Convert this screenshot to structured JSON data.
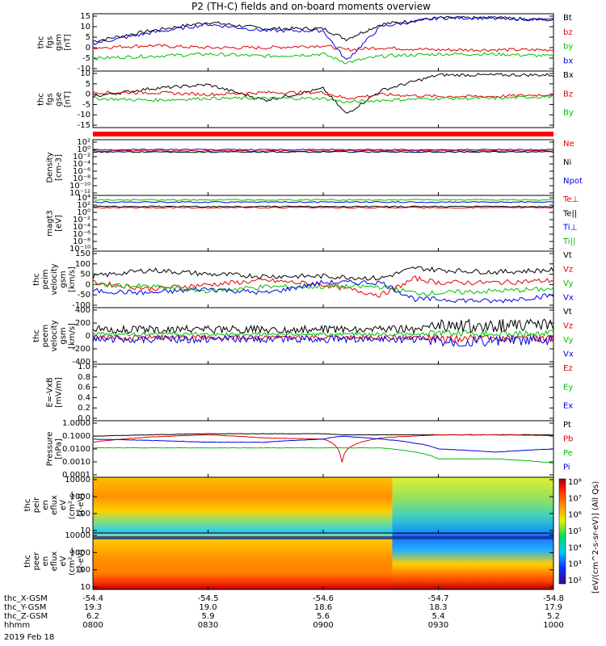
{
  "title": "P2 (TH-C) fields and on-board moments overview",
  "colors": {
    "black": "#000000",
    "red": "#e00000",
    "green": "#00c000",
    "blue": "#0000e0"
  },
  "panels": [
    {
      "id": "p1",
      "ylabel": [
        "thc",
        "fgs",
        "gsm",
        "[nT]"
      ],
      "yticks": [
        "15",
        "10",
        "5",
        "0",
        "-5",
        "-10"
      ],
      "legend": [
        [
          "Bt",
          "black"
        ],
        [
          "bz",
          "red"
        ],
        [
          "by",
          "green"
        ],
        [
          "bx",
          "blue"
        ]
      ]
    },
    {
      "id": "p2",
      "ylabel": [
        "thc",
        "fgs",
        "gse",
        "[nT]"
      ],
      "yticks": [
        "10",
        "5",
        "0",
        "-5",
        "-10",
        "-15"
      ],
      "legend": [
        [
          "Bx",
          "black"
        ],
        [
          "Bz",
          "red"
        ],
        [
          "By",
          "green"
        ]
      ]
    },
    {
      "id": "p3",
      "ylabel": [
        "Density",
        "[cm-3]"
      ],
      "yticks": [
        "10²",
        "10⁰",
        "10⁻²",
        "10⁻⁴",
        "10⁻⁶",
        "10⁻⁸",
        "10⁻¹⁰",
        "10⁻¹²"
      ],
      "legend": [
        [
          "Ne",
          "red"
        ],
        [
          "Ni",
          "black"
        ],
        [
          "Npot",
          "blue"
        ]
      ]
    },
    {
      "id": "p4",
      "ylabel": [
        "magt3",
        "[eV]"
      ],
      "yticks": [
        "10⁴",
        "10²",
        "10⁰",
        "10⁻²",
        "10⁻⁴",
        "10⁻⁶",
        "10⁻⁸",
        "10⁻¹⁰"
      ],
      "legend": [
        [
          "Te⊥",
          "red"
        ],
        [
          "Te||",
          "black"
        ],
        [
          "Ti⊥",
          "blue"
        ],
        [
          "Ti||",
          "green"
        ]
      ]
    },
    {
      "id": "p5",
      "ylabel": [
        "thc",
        "peim",
        "velocity",
        "gsm",
        "[km/s]"
      ],
      "yticks": [
        "150",
        "100",
        "50",
        "0",
        "-50",
        "-100"
      ],
      "legend": [
        [
          "Vt",
          "black"
        ],
        [
          "Vz",
          "red"
        ],
        [
          "Vy",
          "green"
        ],
        [
          "Vx",
          "blue"
        ]
      ]
    },
    {
      "id": "p6",
      "ylabel": [
        "thc",
        "peem",
        "velocity",
        "gsm",
        "[km/s]"
      ],
      "yticks": [
        "400",
        "200",
        "0",
        "-200",
        "-400"
      ],
      "legend": [
        [
          "Vt",
          "black"
        ],
        [
          "Vz",
          "red"
        ],
        [
          "Vy",
          "green"
        ],
        [
          "Vx",
          "blue"
        ]
      ]
    },
    {
      "id": "p7",
      "ylabel": [
        "E=-VxB",
        "[mV/m]"
      ],
      "yticks": [
        "1.0",
        "0.8",
        "0.6",
        "0.4",
        "0.2",
        "0.0"
      ],
      "legend": [
        [
          "Ez",
          "red"
        ],
        [
          "Ey",
          "green"
        ],
        [
          "Ex",
          "blue"
        ]
      ]
    },
    {
      "id": "p8",
      "ylabel": [
        "Pressure",
        "[nPa]"
      ],
      "yticks": [
        "1.0000",
        "0.1000",
        "0.0100",
        "0.0010",
        "0.0001"
      ],
      "legend": [
        [
          "Pt",
          "black"
        ],
        [
          "Pb",
          "red"
        ],
        [
          "Pe",
          "green"
        ],
        [
          "Pi",
          "blue"
        ]
      ]
    },
    {
      "id": "p9",
      "ylabel": [
        "thc",
        "peir",
        "en",
        "eflux",
        "eV",
        "(cm²-s-",
        "sr-eV)"
      ],
      "yticks": [
        "10000",
        "1000",
        "100",
        "10"
      ],
      "legend": []
    },
    {
      "id": "p10",
      "ylabel": [
        "thc",
        "peer",
        "en",
        "eflux",
        "eV",
        "(cm²-s-",
        "sr-eV)"
      ],
      "yticks": [
        "10000",
        "1000",
        "100",
        "10"
      ],
      "legend": []
    }
  ],
  "colorbar": {
    "label": "[eV/(cm^2-s-sr-eV)] (All Qs)",
    "ticks": [
      "10⁸",
      "10⁷",
      "10⁶",
      "10⁵",
      "10⁴",
      "10³",
      "10²"
    ]
  },
  "xaxis": {
    "rows": [
      {
        "label": "thc_X-GSM",
        "values": [
          "-54.4",
          "-54.5",
          "-54.6",
          "-54.7",
          "-54.8"
        ]
      },
      {
        "label": "thc_Y-GSM",
        "values": [
          "19.3",
          "19.0",
          "18.6",
          "18.3",
          "17.9"
        ]
      },
      {
        "label": "thc_Z-GSM",
        "values": [
          "6.2",
          "5.9",
          "5.6",
          "5.4",
          "5.2"
        ]
      },
      {
        "label": "hhmm",
        "values": [
          "0800",
          "0830",
          "0900",
          "0930",
          "1000"
        ]
      }
    ],
    "date": "2019 Feb 18"
  },
  "chart_data": [
    {
      "type": "line",
      "panel": "thc fgs gsm [nT]",
      "x_hours": [
        8.0,
        8.25,
        8.5,
        8.75,
        9.0,
        9.1,
        9.25,
        9.5,
        9.75,
        10.0
      ],
      "ylim": [
        -10,
        17
      ],
      "series": [
        {
          "name": "Bt",
          "values": [
            4,
            9,
            13,
            10,
            10,
            5,
            12,
            15,
            15,
            14
          ]
        },
        {
          "name": "bz",
          "values": [
            1,
            2,
            1,
            1,
            2,
            0,
            1,
            0,
            0,
            0
          ]
        },
        {
          "name": "by",
          "values": [
            -4,
            -3,
            -2,
            -3,
            -2,
            -6,
            -3,
            -2,
            -2,
            -3
          ]
        },
        {
          "name": "bx",
          "values": [
            3,
            8,
            12,
            9,
            9,
            -5,
            11,
            15,
            15,
            14
          ]
        }
      ]
    },
    {
      "type": "line",
      "panel": "thc fgs gse [nT]",
      "x_hours": [
        8.0,
        8.25,
        8.5,
        8.75,
        9.0,
        9.1,
        9.25,
        9.5,
        9.75,
        10.0
      ],
      "ylim": [
        -17,
        12
      ],
      "series": [
        {
          "name": "Bx",
          "values": [
            -1,
            3,
            5,
            -3,
            3,
            -10,
            2,
            10,
            10,
            10
          ]
        },
        {
          "name": "Bz",
          "values": [
            1,
            1,
            0,
            1,
            1,
            -2,
            0,
            -1,
            -1,
            0
          ]
        },
        {
          "name": "By",
          "values": [
            -2,
            -3,
            -2,
            -2,
            -2,
            -4,
            -3,
            -2,
            -2,
            -1
          ]
        }
      ]
    },
    {
      "type": "line",
      "panel": "thc peim velocity gsm [km/s]",
      "x_hours": [
        8.0,
        8.25,
        8.5,
        8.75,
        9.0,
        9.25,
        9.4,
        9.5,
        9.75,
        10.0
      ],
      "ylim": [
        -110,
        160
      ],
      "series": [
        {
          "name": "Vt",
          "values": [
            40,
            70,
            50,
            40,
            40,
            30,
            80,
            70,
            60,
            70
          ]
        },
        {
          "name": "Vz",
          "values": [
            10,
            -20,
            0,
            20,
            0,
            -50,
            30,
            10,
            10,
            20
          ]
        },
        {
          "name": "Vy",
          "values": [
            0,
            -10,
            -30,
            -10,
            -10,
            -10,
            -40,
            -40,
            -30,
            -20
          ]
        },
        {
          "name": "Vx",
          "values": [
            -30,
            -40,
            -20,
            -40,
            10,
            10,
            -70,
            -70,
            -80,
            -50
          ]
        }
      ]
    },
    {
      "type": "line",
      "panel": "Pressure [nPa]",
      "x_hours": [
        8.0,
        8.25,
        8.5,
        8.75,
        9.0,
        9.08,
        9.25,
        9.5,
        9.75,
        10.0
      ],
      "ylim": [
        0.0001,
        1.0
      ],
      "yscale": "log",
      "series": [
        {
          "name": "Pt",
          "values": [
            0.08,
            0.1,
            0.12,
            0.12,
            0.12,
            0.1,
            0.1,
            0.1,
            0.1,
            0.1
          ]
        },
        {
          "name": "Pb",
          "values": [
            0.03,
            0.07,
            0.1,
            0.06,
            0.05,
            0.0005,
            0.06,
            0.1,
            0.1,
            0.09
          ]
        },
        {
          "name": "Pe",
          "values": [
            0.012,
            0.012,
            0.012,
            0.012,
            0.012,
            0.012,
            0.012,
            0.002,
            0.002,
            0.001
          ]
        },
        {
          "name": "Pi",
          "values": [
            0.05,
            0.04,
            0.03,
            0.03,
            0.05,
            0.08,
            0.05,
            0.01,
            0.006,
            0.01
          ]
        }
      ]
    }
  ]
}
